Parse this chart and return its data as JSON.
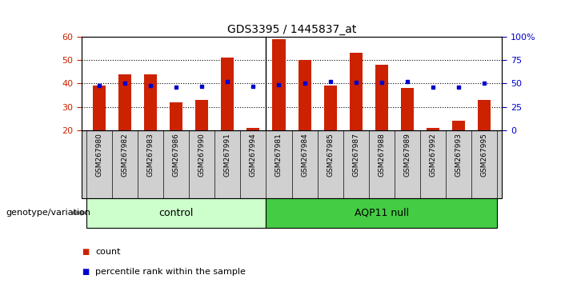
{
  "title": "GDS3395 / 1445837_at",
  "categories": [
    "GSM267980",
    "GSM267982",
    "GSM267983",
    "GSM267986",
    "GSM267990",
    "GSM267991",
    "GSM267994",
    "GSM267981",
    "GSM267984",
    "GSM267985",
    "GSM267987",
    "GSM267988",
    "GSM267989",
    "GSM267992",
    "GSM267993",
    "GSM267995"
  ],
  "n_control": 7,
  "n_aqp11": 9,
  "red_values": [
    39,
    44,
    44,
    32,
    33,
    51,
    21,
    59,
    50,
    39,
    53,
    48,
    38,
    21,
    24,
    33
  ],
  "blue_values": [
    48,
    50,
    48,
    46,
    47,
    52,
    47,
    49,
    50,
    52,
    51,
    51,
    52,
    46,
    46,
    50
  ],
  "bar_bottom": 20,
  "ylim_left": [
    20,
    60
  ],
  "ylim_right": [
    0,
    100
  ],
  "yticks_left": [
    20,
    30,
    40,
    50,
    60
  ],
  "yticks_right": [
    0,
    25,
    50,
    75,
    100
  ],
  "ytick_labels_right": [
    "0",
    "25",
    "50",
    "75",
    "100%"
  ],
  "bar_color": "#cc2200",
  "dot_color": "#0000cc",
  "control_label": "control",
  "aqp11_label": "AQP11 null",
  "control_bg": "#ccffcc",
  "aqp11_bg": "#44cc44",
  "group_label": "genotype/variation",
  "legend_count": "count",
  "legend_pct": "percentile rank within the sample",
  "title_fontsize": 10,
  "tick_bg_color": "#d0d0d0",
  "bar_width": 0.5,
  "xlim": [
    -0.7,
    15.7
  ]
}
